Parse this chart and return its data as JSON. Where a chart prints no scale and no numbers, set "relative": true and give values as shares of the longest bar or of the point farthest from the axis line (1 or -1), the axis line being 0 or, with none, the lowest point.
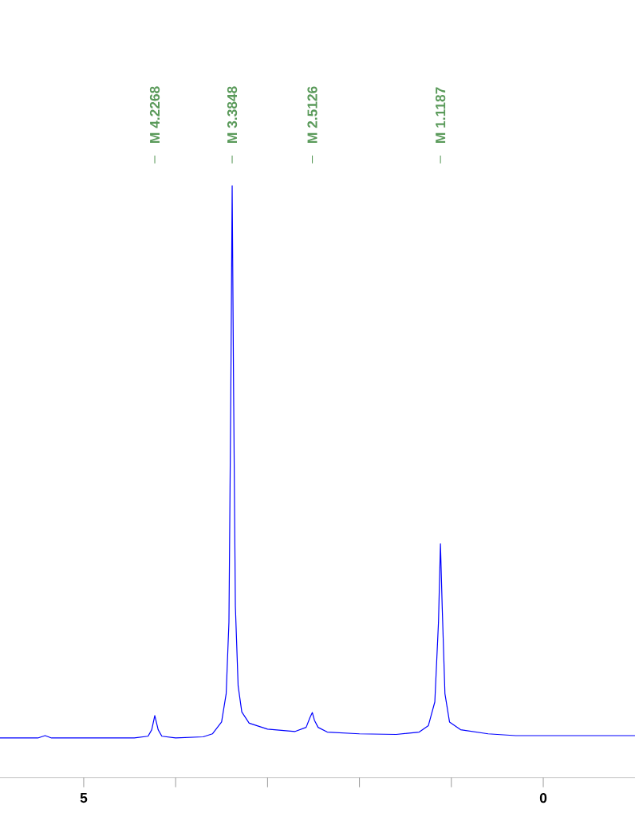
{
  "chart_data": {
    "type": "line",
    "relative": true,
    "xlim": [
      5.911,
      -0.998
    ],
    "xticks": [
      5,
      {
        "value": 4,
        "label": null
      },
      {
        "value": 3,
        "label": null
      },
      {
        "value": 2,
        "label": null
      },
      {
        "value": 1,
        "label": null
      },
      0
    ],
    "grid": false,
    "marker": "none",
    "line_style": "solid",
    "series": [
      {
        "color": "#0000ff",
        "x": [
          5.911,
          5.5,
          5.42,
          5.35,
          4.45,
          4.3,
          4.26,
          4.2268,
          4.19,
          4.15,
          4.0,
          3.7,
          3.6,
          3.5,
          3.45,
          3.42,
          3.4,
          3.3848,
          3.37,
          3.35,
          3.32,
          3.28,
          3.2,
          3.0,
          2.7,
          2.58,
          2.54,
          2.5126,
          2.49,
          2.45,
          2.35,
          2.0,
          1.6,
          1.35,
          1.25,
          1.18,
          1.14,
          1.1187,
          1.1,
          1.07,
          1.02,
          0.9,
          0.6,
          0.3,
          0,
          -0.998
        ],
        "values": [
          0.067,
          0.067,
          0.071,
          0.067,
          0.067,
          0.07,
          0.081,
          0.105,
          0.081,
          0.07,
          0.067,
          0.069,
          0.074,
          0.094,
          0.142,
          0.263,
          0.64,
          1.0,
          0.667,
          0.29,
          0.155,
          0.111,
          0.092,
          0.082,
          0.078,
          0.085,
          0.101,
          0.11,
          0.097,
          0.085,
          0.077,
          0.074,
          0.073,
          0.077,
          0.088,
          0.128,
          0.263,
          0.395,
          0.29,
          0.142,
          0.094,
          0.081,
          0.074,
          0.071,
          0.071,
          0.071
        ]
      }
    ],
    "annotations": [
      {
        "text": "M 4.2268",
        "x": 4.2268
      },
      {
        "text": "M 3.3848",
        "x": 3.3848
      },
      {
        "text": "M 2.5126",
        "x": 2.5126
      },
      {
        "text": "M 1.1187",
        "x": 1.1187
      }
    ]
  }
}
